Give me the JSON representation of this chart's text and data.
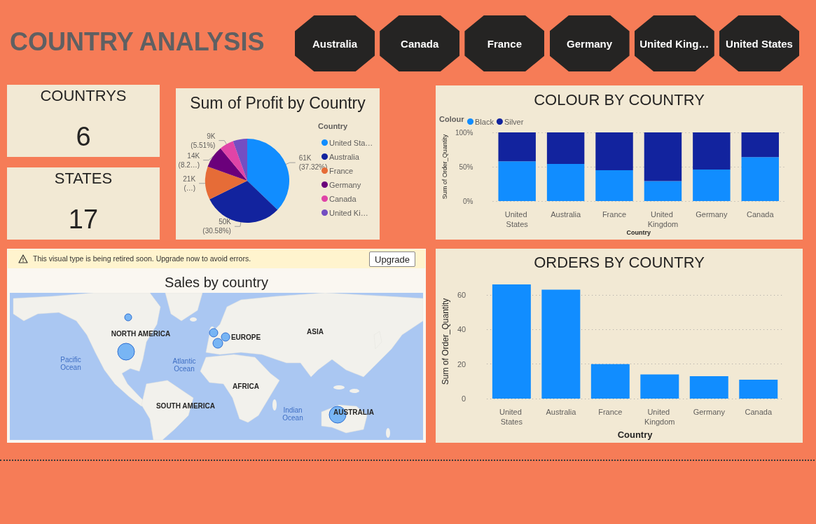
{
  "chart_data": [
    {
      "type": "other",
      "title": "COUNTRY ANALYSIS",
      "categories": [
        "Australia",
        "Canada",
        "France",
        "Germany",
        "United King…",
        "United States"
      ]
    },
    {
      "type": "other",
      "title": "COUNTRYS",
      "values": [
        6
      ],
      "data_labels": true
    },
    {
      "type": "other",
      "title": "STATES",
      "values": [
        17
      ],
      "data_labels": true
    },
    {
      "type": "pie",
      "title": "Sum of Profit by Country",
      "legend_title": "Country",
      "categories": [
        "United Sta…",
        "Australia",
        "France",
        "Germany",
        "Canada",
        "United Ki…"
      ],
      "values": [
        61000,
        50000,
        21000,
        14000,
        9000,
        9000
      ],
      "colors": [
        "#118dff",
        "#12239e",
        "#e66c37",
        "#6b007b",
        "#e044a7",
        "#744ec2"
      ],
      "value_labels": [
        "61K (37.32%)",
        "50K (30.58%)",
        "21K (…)",
        "14K (8.2…)",
        "9K (5.51%)",
        null
      ],
      "legend": "right"
    },
    {
      "type": "bar",
      "title": "COLOUR BY COUNTRY",
      "legend_title": "Colour",
      "xlabel": "Country",
      "ylabel": "Sum of Order_Quantity",
      "categories": [
        "United States",
        "Australia",
        "France",
        "United Kingdom",
        "Germany",
        "Canada"
      ],
      "stacked": true,
      "series": [
        {
          "name": "Black",
          "color": "#118dff",
          "values": [
            58,
            54,
            45,
            29,
            46,
            64
          ]
        },
        {
          "name": "Silver",
          "color": "#12239e",
          "values": [
            42,
            46,
            55,
            71,
            54,
            36
          ]
        }
      ],
      "ylim": [
        0,
        100
      ],
      "yticks": [
        {
          "value": 0,
          "label": "0%"
        },
        {
          "value": 50,
          "label": "50%"
        },
        {
          "value": 100,
          "label": "100%"
        }
      ],
      "grid": "y",
      "legend": "top left"
    },
    {
      "type": "other",
      "title": "Sales by country",
      "annotations": [
        "This visual type is being retired soon. Upgrade now to avoid errors.",
        "Upgrade",
        "NORTH AMERICA",
        "EUROPE",
        "ASIA",
        "AFRICA",
        "SOUTH AMERICA",
        "AUSTRALIA",
        "Pacific Ocean",
        "Atlantic Ocean",
        "Indian Ocean"
      ]
    },
    {
      "type": "bar",
      "title": "ORDERS BY COUNTRY",
      "xlabel": "Country",
      "ylabel": "Sum of Order_Quantity",
      "categories": [
        "United States",
        "Australia",
        "France",
        "United Kingdom",
        "Germany",
        "Canada"
      ],
      "values": [
        66,
        63,
        20,
        14,
        13,
        11
      ],
      "color": "#118dff",
      "ylim": [
        0,
        66
      ],
      "yticks": [
        0,
        20,
        40,
        60
      ],
      "grid": "y"
    }
  ]
}
